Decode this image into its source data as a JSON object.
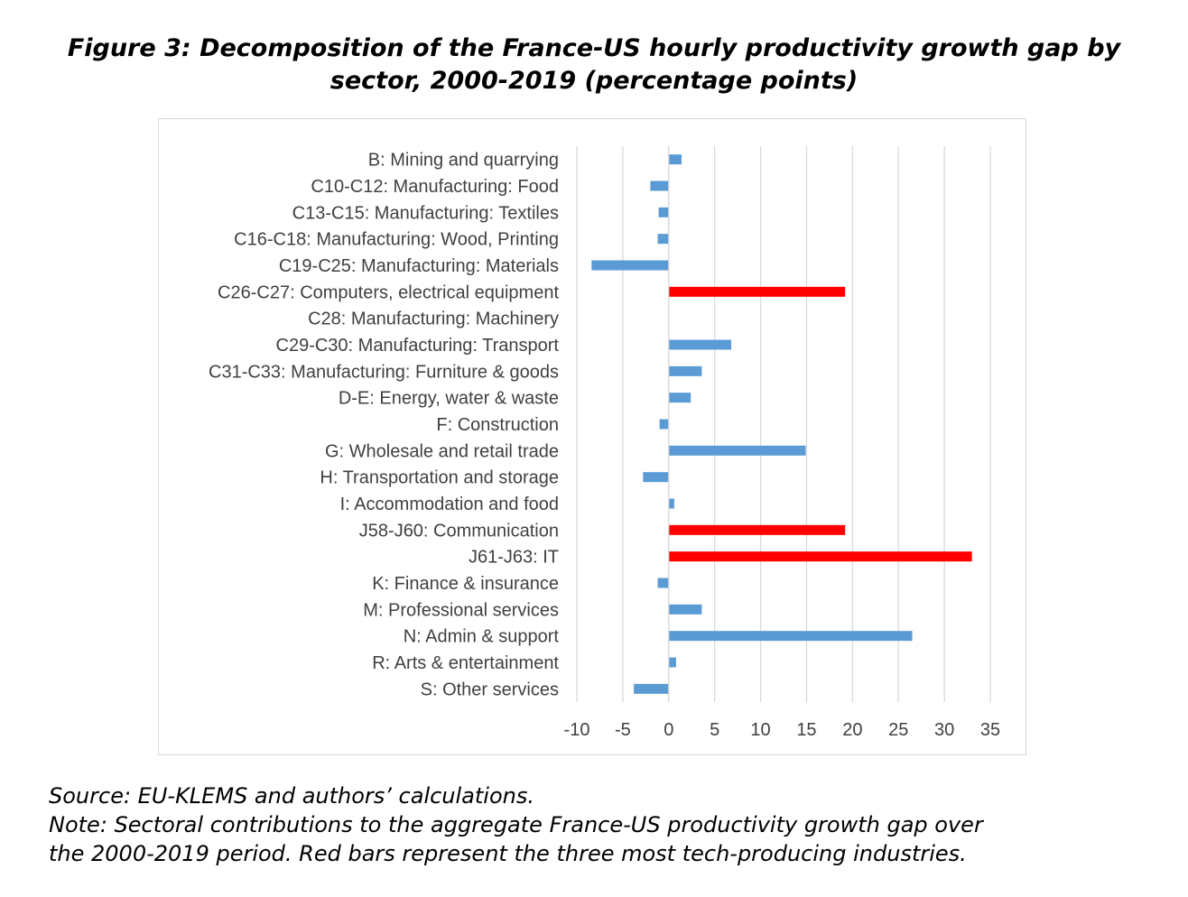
{
  "title_line1": "Figure 3: Decomposition of the France-US hourly productivity growth gap by",
  "title_line2": "sector, 2000-2019 (percentage points)",
  "source": "Source: EU-KLEMS and authors’ calculations.",
  "note_line1": "Note: Sectoral contributions to the aggregate France-US productivity growth gap over",
  "note_line2": "the 2000-2019 period. Red bars represent the three most tech-producing industries.",
  "colors": {
    "blue": "#5b9bd5",
    "red": "#ff0000",
    "grid": "#d9d9d9",
    "label": "#404040"
  },
  "chart_data": {
    "type": "bar",
    "orientation": "horizontal",
    "title": "Figure 3: Decomposition of the France-US hourly productivity growth gap by sector, 2000-2019 (percentage points)",
    "xlabel": "",
    "ylabel": "",
    "xlim": [
      -10,
      35
    ],
    "xticks": [
      -10,
      -5,
      0,
      5,
      10,
      15,
      20,
      25,
      30,
      35
    ],
    "grid": "vertical",
    "categories": [
      "B: Mining and quarrying",
      "C10-C12: Manufacturing: Food",
      "C13-C15: Manufacturing: Textiles",
      "C16-C18: Manufacturing: Wood, Printing",
      "C19-C25: Manufacturing: Materials",
      "C26-C27: Computers, electrical equipment",
      "C28: Manufacturing: Machinery",
      "C29-C30: Manufacturing: Transport",
      "C31-C33: Manufacturing: Furniture & goods",
      "D-E: Energy, water & waste",
      "F: Construction",
      "G: Wholesale and retail trade",
      "H: Transportation and storage",
      "I: Accommodation and food",
      "J58-J60: Communication",
      "J61-J63: IT",
      "K: Finance & insurance",
      "M: Professional services",
      "N: Admin & support",
      "R: Arts & entertainment",
      "S: Other services"
    ],
    "values": [
      1.4,
      -2.0,
      -1.1,
      -1.2,
      -8.4,
      19.2,
      0.0,
      6.8,
      3.6,
      2.4,
      -1.0,
      14.9,
      -2.8,
      0.6,
      19.2,
      33.0,
      -1.2,
      3.6,
      26.5,
      0.8,
      -3.8
    ],
    "highlight": [
      false,
      false,
      false,
      false,
      false,
      true,
      false,
      false,
      false,
      false,
      false,
      false,
      false,
      false,
      true,
      true,
      false,
      false,
      false,
      false,
      false
    ]
  }
}
